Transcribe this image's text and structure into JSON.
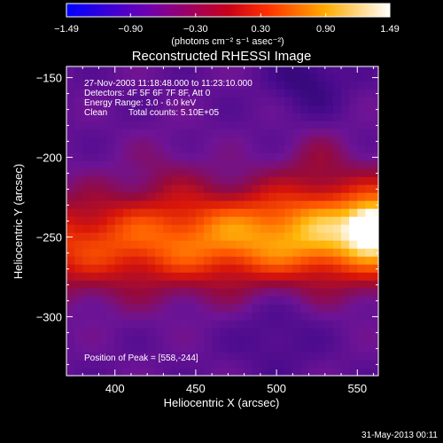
{
  "chart_data": {
    "type": "heatmap",
    "title": "Reconstructed RHESSI Image",
    "xlabel": "Heliocentric X (arcsec)",
    "ylabel": "Heliocentric Y (arcsec)",
    "xlim": [
      370,
      563
    ],
    "ylim": [
      -337,
      -143
    ],
    "x_ticks": [
      400,
      450,
      500,
      550
    ],
    "y_ticks": [
      -300,
      -250,
      -200,
      -150
    ],
    "x_tick_labels": [
      "400",
      "450",
      "500",
      "550"
    ],
    "y_tick_labels": [
      "−300",
      "−250",
      "−200",
      "−150"
    ],
    "colorbar": {
      "min": -1.49,
      "max": 1.49,
      "ticks": [
        -1.49,
        -0.9,
        -0.3,
        0.3,
        0.9,
        1.49
      ],
      "tick_labels": [
        "−1.49",
        "−0.90",
        "−0.30",
        "0.30",
        "0.90",
        "1.49"
      ],
      "units": "(photons cm⁻² s⁻¹ asec⁻²)",
      "colors": [
        "#0000ff",
        "#6f00b0",
        "#c8001a",
        "#ff3000",
        "#ffaa00",
        "#ffffff"
      ]
    },
    "annotations": {
      "time_range": "27-Nov-2003 11:18:48.000 to 11:23:10.000",
      "detectors": "Detectors: 4F 5F 6F 7F 8F, Att 0",
      "energy": "Energy Range: 3.0 - 6.0 keV",
      "clean": "Clean",
      "total_counts": "Total counts: 5.10E+05",
      "peak": "Position of Peak = [558,-244]"
    },
    "peak": {
      "x": 558,
      "y": -244
    }
  },
  "footer": {
    "date": "31-May-2013 00:11"
  }
}
